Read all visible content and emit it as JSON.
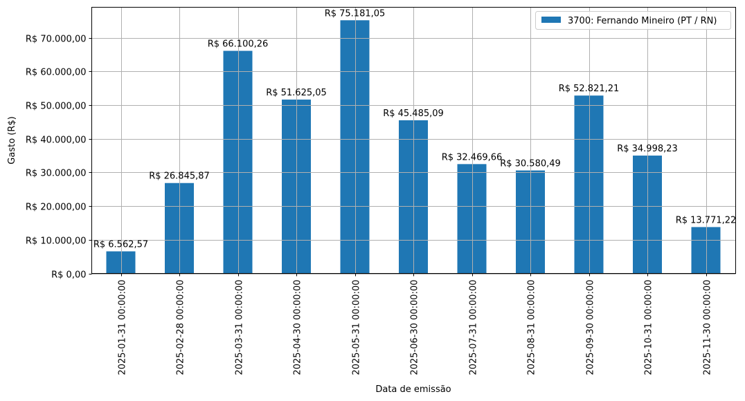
{
  "chart_data": {
    "type": "bar",
    "title": "",
    "xlabel": "Data de emissão",
    "ylabel": "Gasto (R$)",
    "categories": [
      "2025-01-31 00:00:00",
      "2025-02-28 00:00:00",
      "2025-03-31 00:00:00",
      "2025-04-30 00:00:00",
      "2025-05-31 00:00:00",
      "2025-06-30 00:00:00",
      "2025-07-31 00:00:00",
      "2025-08-31 00:00:00",
      "2025-09-30 00:00:00",
      "2025-10-31 00:00:00",
      "2025-11-30 00:00:00"
    ],
    "series": [
      {
        "name": "3700: Fernando Mineiro (PT / RN)",
        "color": "#1f77b4",
        "values": [
          6562.57,
          26845.87,
          66100.26,
          51625.05,
          75181.05,
          45485.09,
          32469.66,
          30580.49,
          52821.21,
          34998.23,
          13771.22
        ],
        "labels": [
          "R$ 6.562,57",
          "R$ 26.845,87",
          "R$ 66.100,26",
          "R$ 51.625,05",
          "R$ 75.181,05",
          "R$ 45.485,09",
          "R$ 32.469,66",
          "R$ 30.580,49",
          "R$ 52.821,21",
          "R$ 34.998,23",
          "R$ 13.771,22"
        ]
      }
    ],
    "yticks": [
      0,
      10000,
      20000,
      30000,
      40000,
      50000,
      60000,
      70000
    ],
    "ytick_labels": [
      "R$ 0,00",
      "R$ 10.000,00",
      "R$ 20.000,00",
      "R$ 30.000,00",
      "R$ 40.000,00",
      "R$ 50.000,00",
      "R$ 60.000,00",
      "R$ 70.000,00"
    ],
    "ylim": [
      0,
      79040
    ],
    "grid": true,
    "legend_position": "upper right",
    "xtick_rotation": 90
  },
  "legend": {
    "entries": [
      {
        "label": "3700: Fernando Mineiro (PT / RN)",
        "color": "#1f77b4"
      }
    ]
  },
  "style": {
    "bar_color": "#1f77b4",
    "grid_color": "#b0b0b0",
    "axis_color": "#000000"
  }
}
